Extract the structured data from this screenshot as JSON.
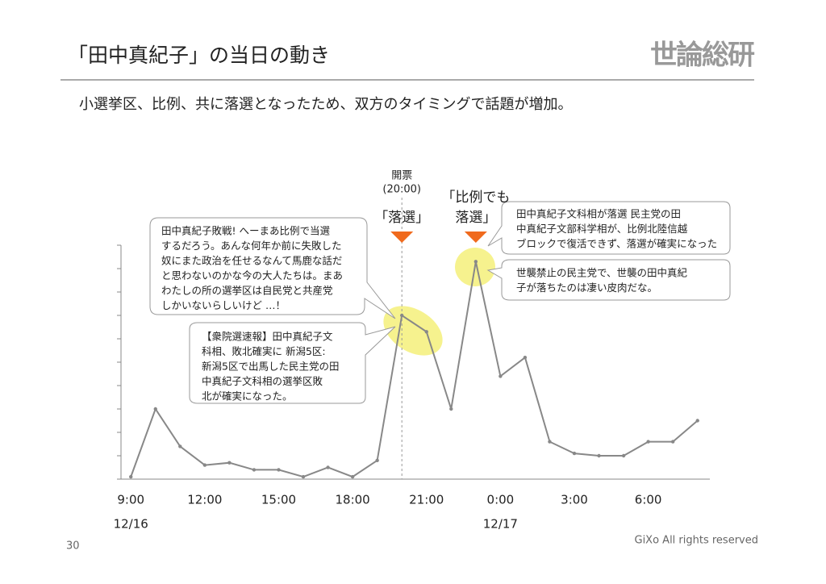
{
  "header": {
    "title": "「田中真紀子」の当日の動き",
    "logo": "世論総研"
  },
  "subtitle": "小選挙区、比例、共に落選となったため、双方のタイミングで話題が増加。",
  "chart_data": {
    "type": "line",
    "color": "#888888",
    "x": [
      9,
      10,
      11,
      12,
      13,
      14,
      15,
      16,
      17,
      18,
      19,
      20,
      21,
      22,
      23,
      24,
      25,
      26,
      27,
      28,
      29,
      30,
      31,
      32
    ],
    "values": [
      0.1,
      3.0,
      1.4,
      0.6,
      0.7,
      0.4,
      0.4,
      0.1,
      0.5,
      0.1,
      0.8,
      7.0,
      6.3,
      3.0,
      9.3,
      4.4,
      5.2,
      1.6,
      1.1,
      1.0,
      1.0,
      1.6,
      1.6,
      2.5
    ],
    "xlim": [
      8.6,
      32.5
    ],
    "xticks": [
      {
        "value": 9,
        "label": "9:00"
      },
      {
        "value": 12,
        "label": "12:00"
      },
      {
        "value": 15,
        "label": "15:00"
      },
      {
        "value": 18,
        "label": "18:00"
      },
      {
        "value": 21,
        "label": "21:00"
      },
      {
        "value": 24,
        "label": "0:00"
      },
      {
        "value": 27,
        "label": "3:00"
      },
      {
        "value": 30,
        "label": "6:00"
      }
    ],
    "date_labels": [
      {
        "value": 9,
        "label": "12/16"
      },
      {
        "value": 24,
        "label": "12/17"
      }
    ],
    "ylim": [
      0,
      10
    ],
    "yticks": [
      0,
      1,
      2,
      3,
      4,
      5,
      6,
      7,
      8,
      9,
      10
    ],
    "annotations": [
      {
        "x": 20,
        "lines": [
          "開票",
          "(20:00)"
        ]
      }
    ],
    "markers": [
      {
        "x": 20,
        "lines": [
          "「落選」"
        ]
      },
      {
        "x": 23,
        "lines": [
          "「比例でも",
          "落選」"
        ]
      }
    ]
  },
  "callouts": [
    {
      "lines": [
        "田中真紀子敗戦! へーまあ比例で当選",
        "するだろう。あんな何年か前に失敗した",
        "奴にまた政治を任せるなんて馬鹿な話だ",
        "と思わないのかな今の大人たちは。まあ",
        "わたしの所の選挙区は自民党と共産党",
        "しかいないらしいけど …！"
      ]
    },
    {
      "lines": [
        "【衆院選速報】田中真紀子文",
        "科相、敗北確実に 新潟5区:",
        "新潟5区で出馬した民主党の田",
        "中真紀子文科相の選挙区敗",
        "北が確実になった。"
      ]
    },
    {
      "lines": [
        "田中真紀子文科相が落選 民主党の田",
        "中真紀子文部科学相が、比例北陸信越",
        "ブロックで復活できず、落選が確実になった"
      ]
    },
    {
      "lines": [
        "世襲禁止の民主党で、世襲の田中真紀",
        "子が落ちたのは凄い皮肉だな。"
      ]
    }
  ],
  "footer": {
    "page": "30",
    "copyright": "GiXo All rights reserved"
  }
}
